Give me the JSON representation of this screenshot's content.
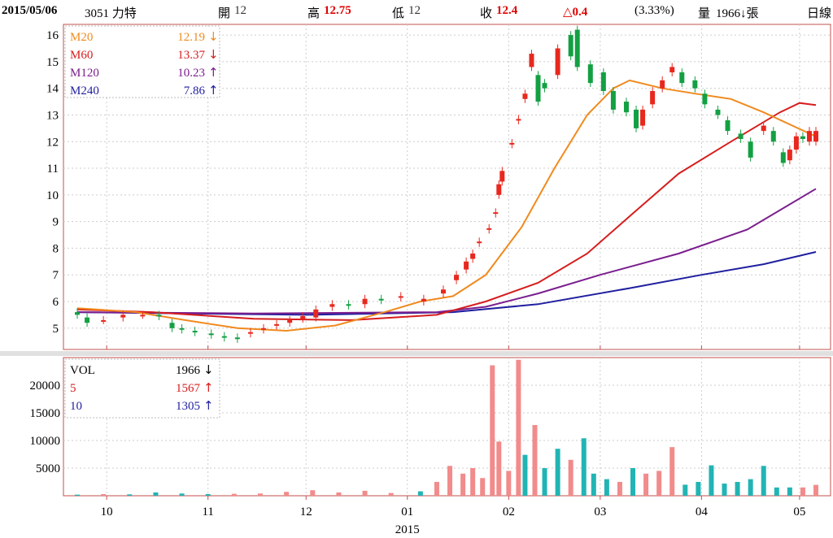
{
  "header": {
    "date": "2015/05/06",
    "stock": "3051 力特",
    "open_label": "開",
    "open_value": "12",
    "high_label": "高",
    "high_value": "12.75",
    "low_label": "低",
    "low_value": "12",
    "close_label": "收",
    "close_value": "12.4",
    "change": "△0.4",
    "change_pct": "(3.33%)",
    "volume_label": "量",
    "volume_value": "1966↓張",
    "period": "日線"
  },
  "colors": {
    "up": "#e8281e",
    "down": "#13a043",
    "ma20": "#f08a1e",
    "ma60": "#d61d1d",
    "ma120": "#7a1e8e",
    "ma240": "#1f1fa0",
    "vol_up": "#f28b8b",
    "vol_down": "#22b4b4",
    "border": "#c0504d",
    "grid": "#cccccc"
  },
  "legend_price": [
    {
      "name": "M20",
      "value": "12.19",
      "arrow": "↓",
      "color": "#f08a1e"
    },
    {
      "name": "M60",
      "value": "13.37",
      "arrow": "↓",
      "color": "#d61d1d"
    },
    {
      "name": "M120",
      "value": "10.23",
      "arrow": "↑",
      "color": "#7a1e8e"
    },
    {
      "name": "M240",
      "value": "7.86",
      "arrow": "↑",
      "color": "#1f1fa0"
    }
  ],
  "legend_volume": [
    {
      "name": "VOL",
      "value": "1966",
      "arrow": "↓",
      "color": "#000000"
    },
    {
      "name": "5",
      "value": "1567",
      "arrow": "↑",
      "color": "#d61d1d"
    },
    {
      "name": "10",
      "value": "1305",
      "arrow": "↑",
      "color": "#1f1fa0"
    }
  ],
  "chart_data": [
    {
      "type": "candlestick",
      "ylim": [
        4.2,
        16.4
      ],
      "y_ticks": [
        "5",
        "6",
        "7",
        "8",
        "9",
        "10",
        "11",
        "12",
        "13",
        "14",
        "15",
        "16"
      ],
      "x_ticks": [
        "10",
        "11",
        "12",
        "01",
        "02",
        "03",
        "04",
        "05"
      ],
      "year_label": "2015",
      "x_range": [
        "2014-09-22",
        "2015-05-06"
      ],
      "month_starts": [
        "2014-10-01",
        "2014-11-01",
        "2014-12-01",
        "2015-01-01",
        "2015-02-01",
        "2015-03-01",
        "2015-04-01",
        "2015-05-01"
      ],
      "candles": [
        {
          "t": "2014-09-22",
          "o": 5.6,
          "c": 5.5
        },
        {
          "t": "2014-09-25",
          "o": 5.4,
          "c": 5.2
        },
        {
          "t": "2014-09-30",
          "o": 5.3,
          "c": 5.3
        },
        {
          "t": "2014-10-06",
          "o": 5.4,
          "c": 5.5
        },
        {
          "t": "2014-10-12",
          "o": 5.5,
          "c": 5.5
        },
        {
          "t": "2014-10-17",
          "o": 5.5,
          "c": 5.45
        },
        {
          "t": "2014-10-21",
          "o": 5.2,
          "c": 5.0
        },
        {
          "t": "2014-10-24",
          "o": 5.0,
          "c": 4.95
        },
        {
          "t": "2014-10-28",
          "o": 4.9,
          "c": 4.85
        },
        {
          "t": "2014-11-02",
          "o": 4.8,
          "c": 4.75
        },
        {
          "t": "2014-11-06",
          "o": 4.7,
          "c": 4.65
        },
        {
          "t": "2014-11-10",
          "o": 4.65,
          "c": 4.6
        },
        {
          "t": "2014-11-14",
          "o": 4.8,
          "c": 4.85
        },
        {
          "t": "2014-11-18",
          "o": 4.95,
          "c": 5.0
        },
        {
          "t": "2014-11-22",
          "o": 5.1,
          "c": 5.15
        },
        {
          "t": "2014-11-26",
          "o": 5.2,
          "c": 5.3
        },
        {
          "t": "2014-11-30",
          "o": 5.35,
          "c": 5.45
        },
        {
          "t": "2014-12-04",
          "o": 5.4,
          "c": 5.7
        },
        {
          "t": "2014-12-09",
          "o": 5.8,
          "c": 5.9
        },
        {
          "t": "2014-12-14",
          "o": 5.9,
          "c": 5.85
        },
        {
          "t": "2014-12-19",
          "o": 5.9,
          "c": 6.1
        },
        {
          "t": "2014-12-24",
          "o": 6.1,
          "c": 6.05
        },
        {
          "t": "2014-12-30",
          "o": 6.15,
          "c": 6.2
        },
        {
          "t": "2015-01-06",
          "o": 6.0,
          "c": 6.1
        },
        {
          "t": "2015-01-12",
          "o": 6.3,
          "c": 6.45
        },
        {
          "t": "2015-01-16",
          "o": 6.8,
          "c": 7.0
        },
        {
          "t": "2015-01-19",
          "o": 7.2,
          "c": 7.5
        },
        {
          "t": "2015-01-21",
          "o": 7.6,
          "c": 7.8
        },
        {
          "t": "2015-01-23",
          "o": 8.2,
          "c": 8.25
        },
        {
          "t": "2015-01-26",
          "o": 8.7,
          "c": 8.75
        },
        {
          "t": "2015-01-28",
          "o": 9.3,
          "c": 9.35
        },
        {
          "t": "2015-01-29",
          "o": 10.0,
          "c": 10.4
        },
        {
          "t": "2015-01-30",
          "o": 10.5,
          "c": 10.9
        },
        {
          "t": "2015-02-02",
          "o": 11.9,
          "c": 11.95
        },
        {
          "t": "2015-02-04",
          "o": 12.8,
          "c": 12.85
        },
        {
          "t": "2015-02-06",
          "o": 13.6,
          "c": 13.8
        },
        {
          "t": "2015-02-08",
          "o": 14.8,
          "c": 15.3
        },
        {
          "t": "2015-02-10",
          "o": 14.5,
          "c": 13.5
        },
        {
          "t": "2015-02-12",
          "o": 14.2,
          "c": 14.0
        },
        {
          "t": "2015-02-16",
          "o": 14.5,
          "c": 15.5
        },
        {
          "t": "2015-02-20",
          "o": 16.0,
          "c": 15.2
        },
        {
          "t": "2015-02-22",
          "o": 16.2,
          "c": 14.8
        },
        {
          "t": "2015-02-26",
          "o": 14.9,
          "c": 14.2
        },
        {
          "t": "2015-03-02",
          "o": 14.6,
          "c": 13.9
        },
        {
          "t": "2015-03-05",
          "o": 13.9,
          "c": 13.2
        },
        {
          "t": "2015-03-09",
          "o": 13.5,
          "c": 13.1
        },
        {
          "t": "2015-03-12",
          "o": 13.2,
          "c": 12.5
        },
        {
          "t": "2015-03-14",
          "o": 12.6,
          "c": 13.2
        },
        {
          "t": "2015-03-17",
          "o": 13.4,
          "c": 13.9
        },
        {
          "t": "2015-03-20",
          "o": 14.0,
          "c": 14.3
        },
        {
          "t": "2015-03-23",
          "o": 14.6,
          "c": 14.8
        },
        {
          "t": "2015-03-26",
          "o": 14.6,
          "c": 14.2
        },
        {
          "t": "2015-03-30",
          "o": 14.3,
          "c": 14.0
        },
        {
          "t": "2015-04-02",
          "o": 13.8,
          "c": 13.4
        },
        {
          "t": "2015-04-06",
          "o": 13.2,
          "c": 13.0
        },
        {
          "t": "2015-04-09",
          "o": 12.8,
          "c": 12.4
        },
        {
          "t": "2015-04-13",
          "o": 12.3,
          "c": 12.1
        },
        {
          "t": "2015-04-16",
          "o": 12.0,
          "c": 11.4
        },
        {
          "t": "2015-04-20",
          "o": 12.4,
          "c": 12.6
        },
        {
          "t": "2015-04-23",
          "o": 12.4,
          "c": 12.0
        },
        {
          "t": "2015-04-26",
          "o": 11.6,
          "c": 11.2
        },
        {
          "t": "2015-04-28",
          "o": 11.3,
          "c": 11.7
        },
        {
          "t": "2015-04-30",
          "o": 11.7,
          "c": 12.2
        },
        {
          "t": "2015-05-02",
          "o": 12.2,
          "c": 12.1
        },
        {
          "t": "2015-05-04",
          "o": 12.0,
          "c": 12.4
        },
        {
          "t": "2015-05-06",
          "o": 12.0,
          "c": 12.4
        }
      ],
      "series": [
        {
          "name": "M20",
          "points": [
            [
              "2014-09-22",
              5.75
            ],
            [
              "2014-10-10",
              5.6
            ],
            [
              "2014-10-25",
              5.3
            ],
            [
              "2014-11-10",
              5.0
            ],
            [
              "2014-11-25",
              4.9
            ],
            [
              "2014-12-10",
              5.1
            ],
            [
              "2014-12-25",
              5.6
            ],
            [
              "2015-01-05",
              6.0
            ],
            [
              "2015-01-15",
              6.2
            ],
            [
              "2015-01-25",
              7.0
            ],
            [
              "2015-02-05",
              8.8
            ],
            [
              "2015-02-15",
              11.0
            ],
            [
              "2015-02-25",
              13.0
            ],
            [
              "2015-03-05",
              14.0
            ],
            [
              "2015-03-10",
              14.3
            ],
            [
              "2015-03-20",
              14.0
            ],
            [
              "2015-03-30",
              13.8
            ],
            [
              "2015-04-10",
              13.6
            ],
            [
              "2015-04-20",
              13.1
            ],
            [
              "2015-05-06",
              12.19
            ]
          ]
        },
        {
          "name": "M60",
          "points": [
            [
              "2014-09-22",
              5.7
            ],
            [
              "2014-10-15",
              5.6
            ],
            [
              "2014-11-15",
              5.35
            ],
            [
              "2014-12-15",
              5.3
            ],
            [
              "2015-01-10",
              5.5
            ],
            [
              "2015-01-25",
              6.0
            ],
            [
              "2015-02-10",
              6.7
            ],
            [
              "2015-02-25",
              7.8
            ],
            [
              "2015-03-10",
              9.2
            ],
            [
              "2015-03-25",
              10.8
            ],
            [
              "2015-04-10",
              12.0
            ],
            [
              "2015-04-25",
              13.1
            ],
            [
              "2015-05-01",
              13.45
            ],
            [
              "2015-05-06",
              13.37
            ]
          ]
        },
        {
          "name": "M120",
          "points": [
            [
              "2014-09-22",
              5.6
            ],
            [
              "2014-11-15",
              5.55
            ],
            [
              "2015-01-10",
              5.6
            ],
            [
              "2015-01-25",
              5.8
            ],
            [
              "2015-02-10",
              6.3
            ],
            [
              "2015-03-01",
              7.0
            ],
            [
              "2015-03-25",
              7.8
            ],
            [
              "2015-04-15",
              8.7
            ],
            [
              "2015-05-06",
              10.23
            ]
          ]
        },
        {
          "name": "M240",
          "points": [
            [
              "2014-09-22",
              5.6
            ],
            [
              "2014-12-01",
              5.5
            ],
            [
              "2015-01-15",
              5.6
            ],
            [
              "2015-02-10",
              5.9
            ],
            [
              "2015-03-10",
              6.5
            ],
            [
              "2015-04-01",
              7.0
            ],
            [
              "2015-04-20",
              7.4
            ],
            [
              "2015-05-06",
              7.86
            ]
          ]
        }
      ]
    },
    {
      "type": "bar",
      "name": "VOL",
      "ylim": [
        0,
        25000
      ],
      "y_ticks": [
        "5000",
        "10000",
        "15000",
        "20000"
      ],
      "bars": [
        {
          "t": "2014-09-22",
          "v": 200,
          "up": 0
        },
        {
          "t": "2014-09-30",
          "v": 300,
          "up": 1
        },
        {
          "t": "2014-10-08",
          "v": 250,
          "up": 0
        },
        {
          "t": "2014-10-16",
          "v": 600,
          "up": 0
        },
        {
          "t": "2014-10-24",
          "v": 400,
          "up": 0
        },
        {
          "t": "2014-11-01",
          "v": 300,
          "up": 0
        },
        {
          "t": "2014-11-09",
          "v": 350,
          "up": 1
        },
        {
          "t": "2014-11-17",
          "v": 400,
          "up": 1
        },
        {
          "t": "2014-11-25",
          "v": 700,
          "up": 1
        },
        {
          "t": "2014-12-03",
          "v": 1000,
          "up": 1
        },
        {
          "t": "2014-12-11",
          "v": 600,
          "up": 1
        },
        {
          "t": "2014-12-19",
          "v": 900,
          "up": 1
        },
        {
          "t": "2014-12-27",
          "v": 500,
          "up": 1
        },
        {
          "t": "2015-01-05",
          "v": 800,
          "up": 0
        },
        {
          "t": "2015-01-10",
          "v": 2500,
          "up": 1
        },
        {
          "t": "2015-01-14",
          "v": 5400,
          "up": 1
        },
        {
          "t": "2015-01-18",
          "v": 4000,
          "up": 1
        },
        {
          "t": "2015-01-21",
          "v": 5000,
          "up": 1
        },
        {
          "t": "2015-01-24",
          "v": 3200,
          "up": 1
        },
        {
          "t": "2015-01-27",
          "v": 23600,
          "up": 1
        },
        {
          "t": "2015-01-29",
          "v": 9800,
          "up": 1
        },
        {
          "t": "2015-02-01",
          "v": 4500,
          "up": 1
        },
        {
          "t": "2015-02-04",
          "v": 24600,
          "up": 1
        },
        {
          "t": "2015-02-06",
          "v": 7400,
          "up": 0
        },
        {
          "t": "2015-02-09",
          "v": 12800,
          "up": 1
        },
        {
          "t": "2015-02-12",
          "v": 5000,
          "up": 0
        },
        {
          "t": "2015-02-16",
          "v": 8500,
          "up": 0
        },
        {
          "t": "2015-02-20",
          "v": 6500,
          "up": 1
        },
        {
          "t": "2015-02-24",
          "v": 10400,
          "up": 0
        },
        {
          "t": "2015-02-27",
          "v": 4000,
          "up": 0
        },
        {
          "t": "2015-03-03",
          "v": 3000,
          "up": 0
        },
        {
          "t": "2015-03-07",
          "v": 2500,
          "up": 1
        },
        {
          "t": "2015-03-11",
          "v": 5000,
          "up": 0
        },
        {
          "t": "2015-03-15",
          "v": 4000,
          "up": 1
        },
        {
          "t": "2015-03-19",
          "v": 4500,
          "up": 1
        },
        {
          "t": "2015-03-23",
          "v": 8800,
          "up": 1
        },
        {
          "t": "2015-03-27",
          "v": 2000,
          "up": 0
        },
        {
          "t": "2015-03-31",
          "v": 2500,
          "up": 0
        },
        {
          "t": "2015-04-04",
          "v": 5500,
          "up": 0
        },
        {
          "t": "2015-04-08",
          "v": 2200,
          "up": 0
        },
        {
          "t": "2015-04-12",
          "v": 2500,
          "up": 0
        },
        {
          "t": "2015-04-16",
          "v": 3000,
          "up": 0
        },
        {
          "t": "2015-04-20",
          "v": 5400,
          "up": 0
        },
        {
          "t": "2015-04-24",
          "v": 1500,
          "up": 0
        },
        {
          "t": "2015-04-28",
          "v": 1500,
          "up": 0
        },
        {
          "t": "2015-05-02",
          "v": 1500,
          "up": 1
        },
        {
          "t": "2015-05-06",
          "v": 1966,
          "up": 1
        }
      ]
    }
  ]
}
